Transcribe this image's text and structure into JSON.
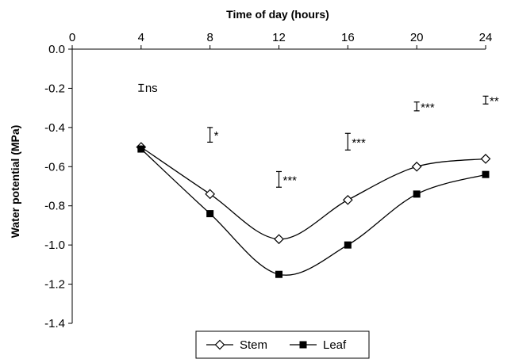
{
  "chart_data": {
    "type": "line",
    "xlabel": "Time of day (hours)",
    "ylabel": "Water potential (MPa)",
    "xlim": [
      0,
      24
    ],
    "ylim": [
      -1.4,
      0.0
    ],
    "x_ticks": [
      0,
      4,
      8,
      12,
      16,
      20,
      24
    ],
    "y_ticks": [
      0.0,
      -0.2,
      -0.4,
      -0.6,
      -0.8,
      -1.0,
      -1.2,
      -1.4
    ],
    "x_tick_labels": [
      "0",
      "4",
      "8",
      "12",
      "16",
      "20",
      "24"
    ],
    "y_tick_labels": [
      "0.0",
      "-0.2",
      "-0.4",
      "-0.6",
      "-0.8",
      "-1.0",
      "-1.2",
      "-1.4"
    ],
    "x_axis_position": "top",
    "grid": false,
    "legend_position": "bottom",
    "line_color": "#000000",
    "series": [
      {
        "name": "Stem",
        "marker": "open-diamond",
        "x": [
          4,
          8,
          12,
          16,
          20,
          24
        ],
        "y": [
          -0.5,
          -0.74,
          -0.97,
          -0.77,
          -0.6,
          -0.56
        ]
      },
      {
        "name": "Leaf",
        "marker": "filled-square",
        "x": [
          4,
          8,
          12,
          16,
          20,
          24
        ],
        "y": [
          -0.51,
          -0.84,
          -1.15,
          -1.0,
          -0.74,
          -0.64
        ]
      }
    ],
    "error_bars": [
      {
        "x": 4,
        "y_low": -0.215,
        "y_high": -0.18,
        "label": "ns"
      },
      {
        "x": 8,
        "y_low": -0.475,
        "y_high": -0.4,
        "label": "*"
      },
      {
        "x": 12,
        "y_low": -0.705,
        "y_high": -0.625,
        "label": "***"
      },
      {
        "x": 16,
        "y_low": -0.515,
        "y_high": -0.43,
        "label": "***"
      },
      {
        "x": 20,
        "y_low": -0.315,
        "y_high": -0.27,
        "label": "***"
      },
      {
        "x": 24,
        "y_low": -0.28,
        "y_high": -0.24,
        "label": "**"
      }
    ]
  }
}
